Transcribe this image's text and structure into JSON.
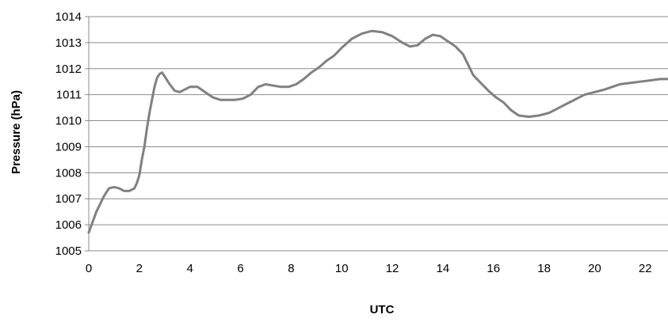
{
  "chart_data": {
    "type": "line",
    "title": "",
    "xlabel": "UTC",
    "ylabel": "Pressure (hPa)",
    "xlim": [
      0,
      22.9
    ],
    "ylim": [
      1005,
      1014
    ],
    "xticks": [
      0,
      2,
      4,
      6,
      8,
      10,
      12,
      14,
      16,
      18,
      20,
      22
    ],
    "yticks": [
      1005,
      1006,
      1007,
      1008,
      1009,
      1010,
      1011,
      1012,
      1013,
      1014
    ],
    "grid": "horizontal",
    "legend": "none",
    "line_color": "#808080",
    "series": [
      {
        "x": [
          0,
          0.3,
          0.6,
          0.8,
          1.0,
          1.2,
          1.4,
          1.6,
          1.8,
          1.9,
          2.0,
          2.1,
          2.2,
          2.3,
          2.4,
          2.5,
          2.6,
          2.7,
          2.8,
          2.9,
          3.0,
          3.2,
          3.4,
          3.6,
          3.8,
          4.0,
          4.3,
          4.6,
          4.9,
          5.2,
          5.5,
          5.8,
          6.1,
          6.4,
          6.7,
          7.0,
          7.3,
          7.6,
          7.9,
          8.2,
          8.5,
          8.8,
          9.1,
          9.4,
          9.7,
          10.0,
          10.4,
          10.8,
          11.2,
          11.6,
          12.0,
          12.4,
          12.7,
          13.0,
          13.3,
          13.6,
          13.9,
          14.2,
          14.5,
          14.8,
          15.0,
          15.2,
          15.5,
          15.8,
          16.1,
          16.4,
          16.7,
          17.0,
          17.4,
          17.8,
          18.2,
          18.6,
          19.0,
          19.3,
          19.6,
          20.0,
          20.4,
          20.7,
          21.0,
          21.4,
          21.8,
          22.2,
          22.6,
          22.9
        ],
        "y": [
          1005.7,
          1006.5,
          1007.1,
          1007.4,
          1007.45,
          1007.4,
          1007.3,
          1007.3,
          1007.4,
          1007.6,
          1007.9,
          1008.5,
          1009.0,
          1009.7,
          1010.3,
          1010.8,
          1011.3,
          1011.65,
          1011.8,
          1011.85,
          1011.7,
          1011.4,
          1011.15,
          1011.1,
          1011.2,
          1011.3,
          1011.3,
          1011.1,
          1010.9,
          1010.8,
          1010.8,
          1010.8,
          1010.85,
          1011.0,
          1011.3,
          1011.4,
          1011.35,
          1011.3,
          1011.3,
          1011.4,
          1011.6,
          1011.85,
          1012.05,
          1012.3,
          1012.5,
          1012.8,
          1013.15,
          1013.35,
          1013.45,
          1013.4,
          1013.25,
          1013.0,
          1012.85,
          1012.9,
          1013.15,
          1013.3,
          1013.25,
          1013.05,
          1012.85,
          1012.55,
          1012.15,
          1011.75,
          1011.45,
          1011.15,
          1010.9,
          1010.7,
          1010.4,
          1010.2,
          1010.15,
          1010.2,
          1010.3,
          1010.5,
          1010.7,
          1010.85,
          1011.0,
          1011.1,
          1011.2,
          1011.3,
          1011.4,
          1011.45,
          1011.5,
          1011.55,
          1011.6,
          1011.6
        ]
      }
    ]
  }
}
